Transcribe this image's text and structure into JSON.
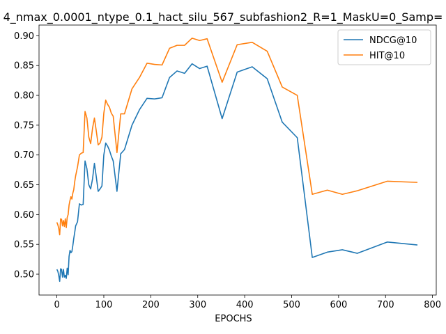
{
  "colors": {
    "ndcg": "#1f77b4",
    "hit": "#ff7f0e"
  },
  "chart_data": {
    "type": "line",
    "title": "4_nmax_0.0001_ntype_0.1_hact_silu_567_subfashion2_R=1_MaskU=0_Samp=",
    "xlabel": "EPOCHS",
    "ylabel": "",
    "xlim": [
      -38,
      808
    ],
    "ylim": [
      0.465,
      0.918
    ],
    "xticks": [
      0,
      100,
      200,
      300,
      400,
      500,
      600,
      700,
      800
    ],
    "yticks": [
      0.5,
      0.55,
      0.6,
      0.65,
      0.7,
      0.75,
      0.8,
      0.85,
      0.9
    ],
    "grid": false,
    "legend_position": "top-right",
    "series": [
      {
        "name": "NDCG@10",
        "color": "#1f77b4",
        "x": [
          0,
          2,
          4,
          6,
          8,
          10,
          12,
          14,
          16,
          18,
          20,
          22,
          24,
          26,
          28,
          30,
          32,
          34,
          36,
          38,
          40,
          44,
          48,
          52,
          56,
          60,
          64,
          68,
          72,
          76,
          80,
          84,
          88,
          92,
          96,
          100,
          104,
          108,
          112,
          116,
          120,
          128,
          136,
          144,
          160,
          176,
          192,
          208,
          224,
          240,
          256,
          272,
          288,
          304,
          320,
          352,
          384,
          416,
          448,
          480,
          512,
          544,
          576,
          608,
          640,
          704,
          768
        ],
        "y": [
          0.508,
          0.505,
          0.498,
          0.488,
          0.509,
          0.508,
          0.495,
          0.508,
          0.495,
          0.498,
          0.493,
          0.51,
          0.499,
          0.53,
          0.54,
          0.536,
          0.538,
          0.548,
          0.56,
          0.57,
          0.581,
          0.588,
          0.618,
          0.616,
          0.617,
          0.69,
          0.677,
          0.65,
          0.643,
          0.66,
          0.686,
          0.663,
          0.639,
          0.643,
          0.648,
          0.7,
          0.72,
          0.715,
          0.708,
          0.698,
          0.69,
          0.639,
          0.702,
          0.709,
          0.75,
          0.776,
          0.795,
          0.794,
          0.796,
          0.83,
          0.841,
          0.837,
          0.853,
          0.845,
          0.849,
          0.761,
          0.839,
          0.848,
          0.828,
          0.755,
          0.729,
          0.528,
          0.537,
          0.541,
          0.535,
          0.554,
          0.549
        ]
      },
      {
        "name": "HIT@10",
        "color": "#ff7f0e",
        "x": [
          0,
          2,
          4,
          6,
          8,
          10,
          12,
          14,
          16,
          18,
          20,
          22,
          24,
          26,
          28,
          30,
          32,
          34,
          36,
          38,
          40,
          44,
          48,
          52,
          56,
          60,
          64,
          68,
          72,
          76,
          80,
          84,
          88,
          92,
          96,
          100,
          104,
          108,
          112,
          116,
          120,
          128,
          136,
          144,
          160,
          176,
          192,
          208,
          224,
          240,
          256,
          272,
          288,
          304,
          320,
          352,
          384,
          416,
          448,
          480,
          512,
          544,
          576,
          608,
          640,
          704,
          768
        ],
        "y": [
          0.587,
          0.583,
          0.577,
          0.566,
          0.593,
          0.592,
          0.581,
          0.59,
          0.58,
          0.593,
          0.578,
          0.595,
          0.6,
          0.616,
          0.624,
          0.63,
          0.626,
          0.636,
          0.642,
          0.655,
          0.665,
          0.68,
          0.7,
          0.703,
          0.704,
          0.773,
          0.762,
          0.73,
          0.719,
          0.745,
          0.762,
          0.74,
          0.717,
          0.72,
          0.73,
          0.77,
          0.792,
          0.785,
          0.78,
          0.77,
          0.765,
          0.704,
          0.769,
          0.769,
          0.811,
          0.83,
          0.854,
          0.852,
          0.851,
          0.879,
          0.884,
          0.884,
          0.896,
          0.892,
          0.895,
          0.822,
          0.885,
          0.889,
          0.874,
          0.814,
          0.8,
          0.634,
          0.641,
          0.634,
          0.64,
          0.656,
          0.654
        ]
      }
    ]
  }
}
